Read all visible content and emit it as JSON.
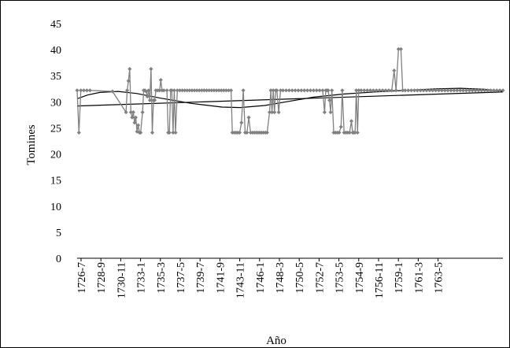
{
  "chart_data": {
    "type": "line",
    "title": "",
    "xlabel": "Año",
    "ylabel": "Tomines",
    "ylim": [
      0,
      45
    ],
    "yticks": [
      0,
      5,
      10,
      15,
      20,
      25,
      30,
      35,
      40,
      45
    ],
    "xtick_labels": [
      "1726-7",
      "1728-9",
      "1730-11",
      "1733-1",
      "1735-3",
      "1737-5",
      "1739-7",
      "1741-9",
      "1743-11",
      "1746-1",
      "1748-3",
      "1750-5",
      "1752-7",
      "1753-5",
      "1754-9",
      "1756-11",
      "1759-1",
      "1761-3",
      "1763-5"
    ],
    "grid": false,
    "legend": "none",
    "colors": {
      "series": "#808080",
      "trend": "#000000",
      "axis": "#000000"
    },
    "series": [
      {
        "values": [
          [
            1726.3,
            32.2
          ],
          [
            1726.6,
            24.1
          ],
          [
            1726.9,
            32.2
          ],
          [
            1727.4,
            32.2
          ],
          [
            1727.9,
            32.2
          ],
          [
            1728.4,
            32.2
          ],
          [
            1732.1,
            32.0
          ],
          [
            1734.3,
            28.0
          ],
          [
            1734.5,
            32.2
          ],
          [
            1734.7,
            34.0
          ],
          [
            1734.9,
            36.3
          ],
          [
            1735.1,
            28.0
          ],
          [
            1735.3,
            27.0
          ],
          [
            1735.5,
            28.0
          ],
          [
            1735.7,
            26.0
          ],
          [
            1735.9,
            27.0
          ],
          [
            1736.1,
            24.3
          ],
          [
            1736.3,
            25.5
          ],
          [
            1736.5,
            24.1
          ],
          [
            1736.7,
            24.1
          ],
          [
            1737.0,
            28.0
          ],
          [
            1737.2,
            32.2
          ],
          [
            1737.4,
            32.2
          ],
          [
            1737.6,
            32.0
          ],
          [
            1737.8,
            31.0
          ],
          [
            1738.0,
            32.2
          ],
          [
            1738.2,
            30.3
          ],
          [
            1738.4,
            36.3
          ],
          [
            1738.6,
            24.1
          ],
          [
            1738.8,
            30.3
          ],
          [
            1739.0,
            30.3
          ],
          [
            1739.2,
            32.2
          ],
          [
            1739.5,
            32.2
          ],
          [
            1739.8,
            32.2
          ],
          [
            1740.0,
            34.2
          ],
          [
            1740.2,
            32.2
          ],
          [
            1740.5,
            32.2
          ],
          [
            1741.0,
            32.2
          ],
          [
            1741.2,
            24.1
          ],
          [
            1741.4,
            24.1
          ],
          [
            1741.6,
            32.2
          ],
          [
            1741.8,
            32.2
          ],
          [
            1742.0,
            24.1
          ],
          [
            1742.2,
            32.2
          ],
          [
            1742.4,
            24.1
          ],
          [
            1742.7,
            32.2
          ],
          [
            1743.1,
            32.2
          ],
          [
            1743.5,
            32.2
          ],
          [
            1743.9,
            32.2
          ],
          [
            1744.3,
            32.2
          ],
          [
            1744.7,
            32.2
          ],
          [
            1745.1,
            32.2
          ],
          [
            1745.5,
            32.2
          ],
          [
            1745.9,
            32.2
          ],
          [
            1746.3,
            32.2
          ],
          [
            1746.7,
            32.2
          ],
          [
            1747.1,
            32.2
          ],
          [
            1747.5,
            32.2
          ],
          [
            1747.9,
            32.2
          ],
          [
            1748.3,
            32.2
          ],
          [
            1748.7,
            32.2
          ],
          [
            1749.1,
            32.2
          ],
          [
            1749.5,
            32.2
          ],
          [
            1749.9,
            32.2
          ],
          [
            1750.3,
            32.2
          ],
          [
            1750.7,
            32.2
          ],
          [
            1751.1,
            32.2
          ],
          [
            1751.5,
            32.2
          ],
          [
            1751.7,
            24.1
          ],
          [
            1752.0,
            24.1
          ],
          [
            1752.3,
            24.1
          ],
          [
            1752.6,
            24.1
          ],
          [
            1752.9,
            24.1
          ],
          [
            1753.2,
            26.0
          ],
          [
            1753.5,
            32.2
          ],
          [
            1753.8,
            24.1
          ],
          [
            1754.1,
            24.1
          ],
          [
            1754.4,
            27.0
          ],
          [
            1754.7,
            24.1
          ],
          [
            1755.0,
            24.1
          ],
          [
            1755.3,
            24.1
          ],
          [
            1755.6,
            24.1
          ],
          [
            1755.9,
            24.1
          ],
          [
            1756.2,
            24.1
          ],
          [
            1756.5,
            24.1
          ],
          [
            1756.8,
            24.1
          ],
          [
            1757.1,
            24.1
          ],
          [
            1757.4,
            24.1
          ],
          [
            1757.8,
            28.0
          ],
          [
            1758.0,
            32.2
          ],
          [
            1758.2,
            28.0
          ],
          [
            1758.4,
            32.2
          ],
          [
            1758.6,
            28.0
          ],
          [
            1758.8,
            32.2
          ],
          [
            1759.0,
            32.2
          ],
          [
            1759.3,
            28.0
          ],
          [
            1759.6,
            32.2
          ],
          [
            1760.0,
            32.2
          ],
          [
            1760.5,
            32.2
          ],
          [
            1761.0,
            32.2
          ],
          [
            1761.5,
            32.2
          ],
          [
            1762.0,
            32.2
          ],
          [
            1762.5,
            32.2
          ],
          [
            1763.0,
            32.2
          ],
          [
            1763.5,
            32.2
          ],
          [
            1764.0,
            32.2
          ],
          [
            1764.5,
            32.2
          ],
          [
            1765.0,
            32.2
          ],
          [
            1765.5,
            32.2
          ],
          [
            1766.0,
            32.2
          ],
          [
            1766.5,
            32.2
          ],
          [
            1766.8,
            28.0
          ],
          [
            1767.0,
            32.2
          ],
          [
            1767.2,
            32.2
          ],
          [
            1767.4,
            32.2
          ],
          [
            1767.6,
            30.3
          ],
          [
            1767.8,
            28.0
          ],
          [
            1768.0,
            32.2
          ],
          [
            1768.3,
            24.1
          ],
          [
            1768.6,
            24.1
          ],
          [
            1768.9,
            24.1
          ],
          [
            1769.2,
            24.1
          ],
          [
            1769.5,
            25.2
          ],
          [
            1769.7,
            32.2
          ],
          [
            1770.0,
            24.1
          ],
          [
            1770.3,
            24.1
          ],
          [
            1770.6,
            24.1
          ],
          [
            1770.9,
            24.1
          ],
          [
            1771.2,
            26.3
          ],
          [
            1771.4,
            24.1
          ],
          [
            1771.6,
            24.1
          ],
          [
            1771.8,
            24.1
          ],
          [
            1772.0,
            32.2
          ],
          [
            1772.2,
            24.1
          ],
          [
            1772.4,
            32.2
          ],
          [
            1772.8,
            32.2
          ],
          [
            1773.3,
            32.2
          ],
          [
            1773.8,
            32.2
          ],
          [
            1774.3,
            32.2
          ],
          [
            1774.8,
            32.2
          ],
          [
            1775.3,
            32.2
          ],
          [
            1775.8,
            32.2
          ],
          [
            1776.3,
            32.2
          ],
          [
            1776.8,
            32.2
          ],
          [
            1777.3,
            32.2
          ],
          [
            1777.8,
            32.2
          ],
          [
            1778.2,
            36.0
          ],
          [
            1778.5,
            32.2
          ],
          [
            1778.9,
            40.1
          ],
          [
            1779.3,
            40.1
          ],
          [
            1779.6,
            32.2
          ],
          [
            1780.0,
            32.2
          ],
          [
            1780.5,
            32.2
          ],
          [
            1781.0,
            32.2
          ],
          [
            1781.5,
            32.2
          ],
          [
            1782.0,
            32.2
          ],
          [
            1782.5,
            32.2
          ],
          [
            1783.0,
            32.2
          ],
          [
            1783.5,
            32.2
          ],
          [
            1784.0,
            32.2
          ],
          [
            1784.5,
            32.2
          ],
          [
            1785.0,
            32.2
          ],
          [
            1785.5,
            32.2
          ],
          [
            1786.0,
            32.2
          ],
          [
            1786.5,
            32.2
          ],
          [
            1787.0,
            32.2
          ],
          [
            1787.5,
            32.2
          ],
          [
            1788.0,
            32.2
          ],
          [
            1788.5,
            32.2
          ],
          [
            1789.0,
            32.2
          ],
          [
            1789.5,
            32.2
          ],
          [
            1790.0,
            32.2
          ],
          [
            1790.5,
            32.2
          ],
          [
            1791.0,
            32.2
          ],
          [
            1791.5,
            32.2
          ],
          [
            1792.0,
            32.2
          ],
          [
            1792.5,
            32.2
          ],
          [
            1793.0,
            32.2
          ],
          [
            1793.5,
            32.2
          ],
          [
            1794.0,
            32.2
          ],
          [
            1794.5,
            32.2
          ],
          [
            1795.0,
            32.2
          ],
          [
            1795.5,
            32.2
          ],
          [
            1796.0,
            32.2
          ]
        ]
      }
    ],
    "trendlines": [
      {
        "type": "linear",
        "values": [
          [
            1726.3,
            29.2
          ],
          [
            1796.0,
            31.9
          ]
        ]
      },
      {
        "type": "polynomial",
        "values": [
          [
            1726.3,
            30.6
          ],
          [
            1728.0,
            31.3
          ],
          [
            1730.0,
            31.8
          ],
          [
            1733.0,
            32.0
          ],
          [
            1736.0,
            31.6
          ],
          [
            1740.0,
            30.7
          ],
          [
            1745.0,
            29.7
          ],
          [
            1750.0,
            29.0
          ],
          [
            1753.0,
            28.9
          ],
          [
            1757.0,
            29.3
          ],
          [
            1761.0,
            30.1
          ],
          [
            1765.0,
            30.9
          ],
          [
            1770.0,
            31.5
          ],
          [
            1775.0,
            31.9
          ],
          [
            1780.0,
            32.2
          ],
          [
            1785.0,
            32.5
          ],
          [
            1789.0,
            32.6
          ],
          [
            1793.0,
            32.4
          ],
          [
            1796.0,
            32.0
          ]
        ]
      }
    ]
  }
}
